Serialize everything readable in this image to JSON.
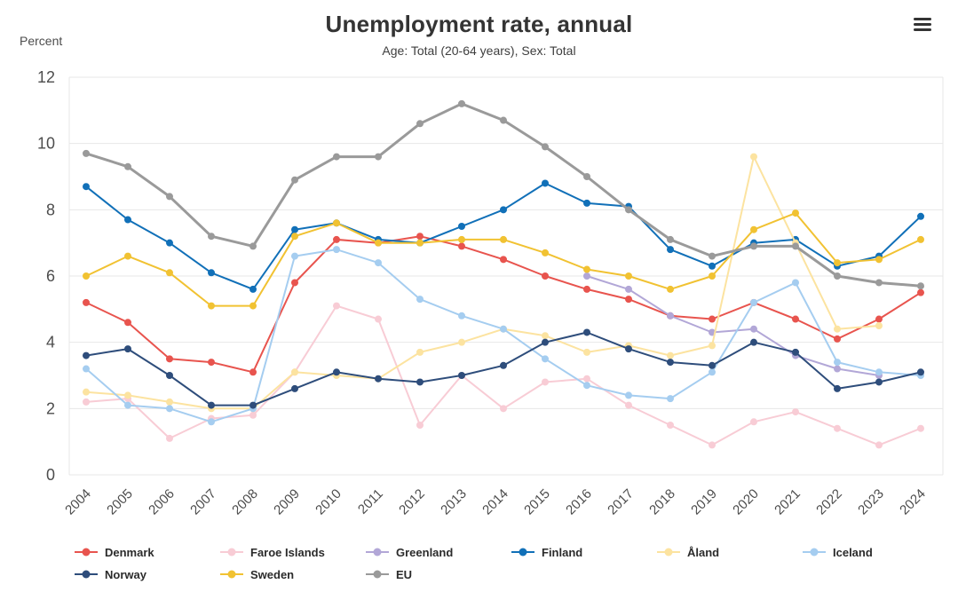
{
  "header": {
    "title": "Unemployment rate, annual",
    "subtitle": "Age: Total (20-64 years), Sex: Total",
    "y_axis_label": "Percent",
    "menu_icon": "hamburger-menu-icon"
  },
  "chart_data": {
    "type": "line",
    "title": "Unemployment rate, annual",
    "subtitle": "Age: Total (20-64 years), Sex: Total",
    "xlabel": "",
    "ylabel": "Percent",
    "ylim": [
      0,
      12
    ],
    "yticks": [
      0,
      2,
      4,
      6,
      8,
      10,
      12
    ],
    "grid": true,
    "legend_position": "bottom",
    "grid_color": "#e7e7e7",
    "x": [
      2004,
      2005,
      2006,
      2007,
      2008,
      2009,
      2010,
      2011,
      2012,
      2013,
      2014,
      2015,
      2016,
      2017,
      2018,
      2019,
      2020,
      2021,
      2022,
      2023,
      2024
    ],
    "series": [
      {
        "name": "Denmark",
        "color": "#e8544e",
        "values": [
          5.2,
          4.6,
          3.5,
          3.4,
          3.1,
          5.8,
          7.1,
          7.0,
          7.2,
          6.9,
          6.5,
          6.0,
          5.6,
          5.3,
          4.8,
          4.7,
          5.2,
          4.7,
          4.1,
          4.7,
          5.5
        ]
      },
      {
        "name": "Faroe Islands",
        "color": "#f8ccd5",
        "values": [
          2.2,
          2.3,
          1.1,
          1.7,
          1.8,
          3.1,
          5.1,
          4.7,
          1.5,
          3.0,
          2.0,
          2.8,
          2.9,
          2.1,
          1.5,
          0.9,
          1.6,
          1.9,
          1.4,
          0.9,
          1.4
        ]
      },
      {
        "name": "Greenland",
        "color": "#b2a7d7",
        "values": [
          null,
          null,
          null,
          null,
          null,
          null,
          null,
          null,
          null,
          null,
          null,
          null,
          6.0,
          5.6,
          4.8,
          4.3,
          4.4,
          3.6,
          3.2,
          3.0,
          null
        ]
      },
      {
        "name": "Finland",
        "color": "#1170b8",
        "values": [
          8.7,
          7.7,
          7.0,
          6.1,
          5.6,
          7.4,
          7.6,
          7.1,
          7.0,
          7.5,
          8.0,
          8.8,
          8.2,
          8.1,
          6.8,
          6.3,
          7.0,
          7.1,
          6.3,
          6.6,
          7.8
        ]
      },
      {
        "name": "Åland",
        "color": "#fce3a0",
        "values": [
          2.5,
          2.4,
          2.2,
          2.0,
          2.0,
          3.1,
          3.0,
          2.9,
          3.7,
          4.0,
          4.4,
          4.2,
          3.7,
          3.9,
          3.6,
          3.9,
          9.6,
          7.0,
          4.4,
          4.5,
          null
        ]
      },
      {
        "name": "Iceland",
        "color": "#a5cdf0",
        "values": [
          3.2,
          2.1,
          2.0,
          1.6,
          2.0,
          6.6,
          6.8,
          6.4,
          5.3,
          4.8,
          4.4,
          3.5,
          2.7,
          2.4,
          2.3,
          3.1,
          5.2,
          5.8,
          3.4,
          3.1,
          3.0
        ]
      },
      {
        "name": "Norway",
        "color": "#2e4d7b",
        "values": [
          3.6,
          3.8,
          3.0,
          2.1,
          2.1,
          2.6,
          3.1,
          2.9,
          2.8,
          3.0,
          3.3,
          4.0,
          4.3,
          3.8,
          3.4,
          3.3,
          4.0,
          3.7,
          2.6,
          2.8,
          3.1
        ]
      },
      {
        "name": "Sweden",
        "color": "#f1c232",
        "values": [
          6.0,
          6.6,
          6.1,
          5.1,
          5.1,
          7.2,
          7.6,
          7.0,
          7.0,
          7.1,
          7.1,
          6.7,
          6.2,
          6.0,
          5.6,
          6.0,
          7.4,
          7.9,
          6.4,
          6.5,
          7.1
        ]
      },
      {
        "name": "EU",
        "color": "#9a9a9a",
        "values": [
          9.7,
          9.3,
          8.4,
          7.2,
          6.9,
          8.9,
          9.6,
          9.6,
          10.6,
          11.2,
          10.7,
          9.9,
          9.0,
          8.0,
          7.1,
          6.6,
          6.9,
          6.9,
          6.0,
          5.8,
          5.7
        ]
      }
    ]
  }
}
